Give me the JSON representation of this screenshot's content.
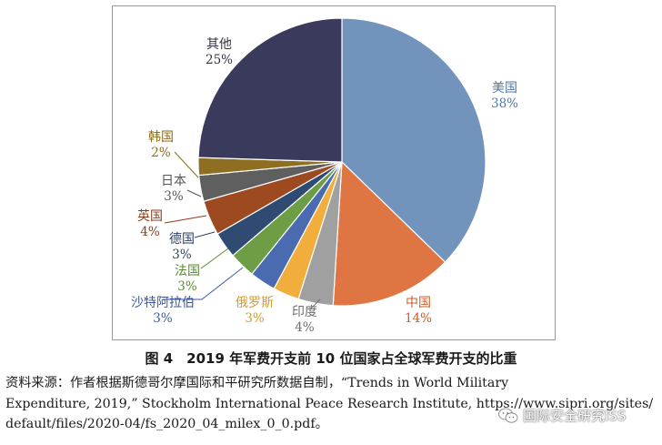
{
  "chart_data": {
    "type": "pie",
    "slices": [
      {
        "label": "美国",
        "pct_label": "38%",
        "value": 38,
        "color": "#7293bc",
        "label_color": "#4f76a8"
      },
      {
        "label": "中国",
        "pct_label": "14%",
        "value": 14,
        "color": "#df7543",
        "label_color": "#c8612e"
      },
      {
        "label": "印度",
        "pct_label": "4%",
        "value": 4,
        "color": "#a0a0a0",
        "label_color": "#6e6e6e"
      },
      {
        "label": "俄罗斯",
        "pct_label": "3%",
        "value": 3,
        "color": "#f2ae3d",
        "label_color": "#d99a2a"
      },
      {
        "label": "沙特阿拉伯",
        "pct_label": "3%",
        "value": 3,
        "color": "#4a6bb0",
        "label_color": "#3d5a9a"
      },
      {
        "label": "法国",
        "pct_label": "3%",
        "value": 3,
        "color": "#6d9e45",
        "label_color": "#5a8a32"
      },
      {
        "label": "德国",
        "pct_label": "3%",
        "value": 3,
        "color": "#2f4b72",
        "label_color": "#2f4060"
      },
      {
        "label": "英国",
        "pct_label": "4%",
        "value": 4,
        "color": "#9e4a21",
        "label_color": "#8a3c18"
      },
      {
        "label": "日本",
        "pct_label": "3%",
        "value": 3,
        "color": "#5f5f5f",
        "label_color": "#555555"
      },
      {
        "label": "韩国",
        "pct_label": "2%",
        "value": 2,
        "color": "#8e6f21",
        "label_color": "#8a6a1c"
      },
      {
        "label": "其他",
        "pct_label": "25%",
        "value": 25,
        "color": "#3a3a5c",
        "label_color": "#333344"
      }
    ]
  },
  "caption": "图 4　2019 年军费开支前 10 位国家占全球军费开支的比重",
  "source_lines": [
    "资料来源：作者根据斯德哥尔摩国际和平研究所数据自制，“Trends in World Military",
    "Expenditure, 2019,” Stockholm International Peace Research Institute, https://www.sipri.org/sites/",
    "default/files/2020-04/fs_2020_04_milex_0_0.pdf。"
  ],
  "watermark": {
    "text": "国际安全研究ISS",
    "icon": "wechat-icon"
  }
}
